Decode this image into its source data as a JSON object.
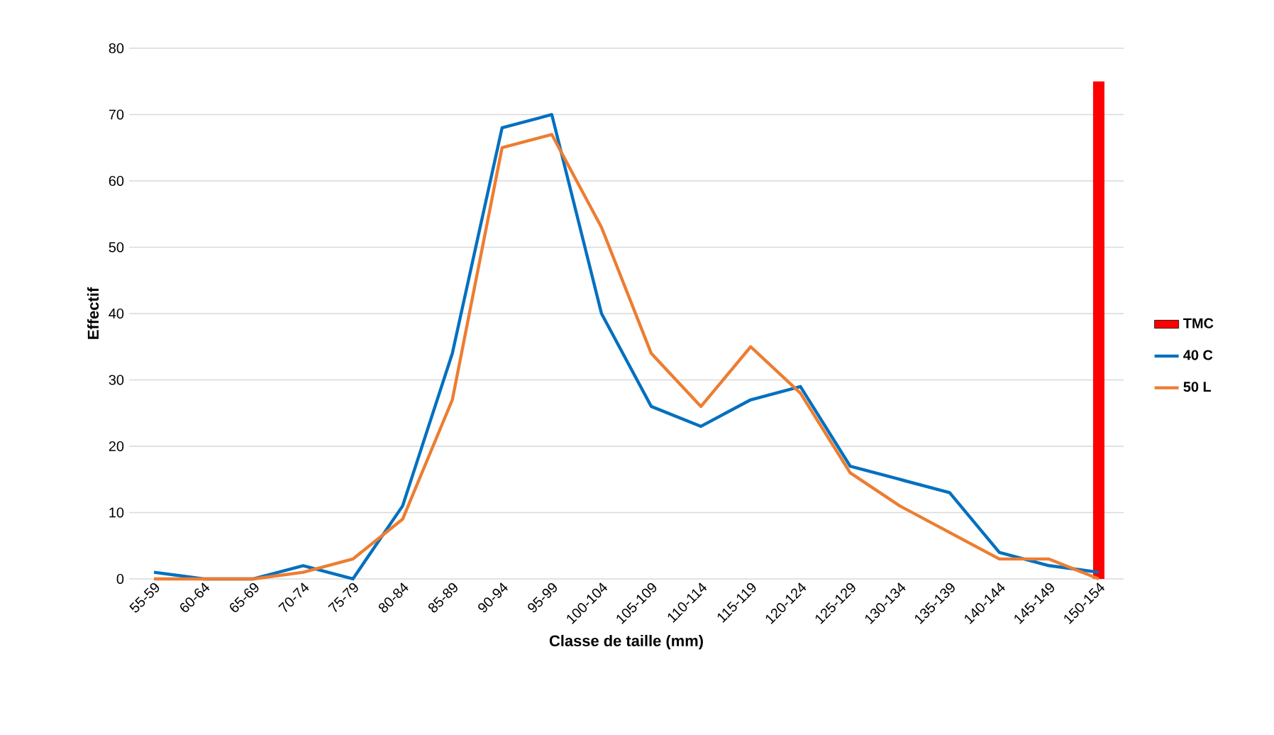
{
  "chart_data": {
    "type": "line",
    "xlabel": "Classe de taille (mm)",
    "ylabel": "Effectif",
    "categories": [
      "55-59",
      "60-64",
      "65-69",
      "70-74",
      "75-79",
      "80-84",
      "85-89",
      "90-94",
      "95-99",
      "100-104",
      "105-109",
      "110-114",
      "115-119",
      "120-124",
      "125-129",
      "130-134",
      "135-139",
      "140-144",
      "145-149",
      "150-154"
    ],
    "series": [
      {
        "name": "TMC",
        "type": "bar",
        "color": "#ff0000",
        "values": [
          null,
          null,
          null,
          null,
          null,
          null,
          null,
          null,
          null,
          null,
          null,
          null,
          null,
          null,
          null,
          null,
          null,
          null,
          null,
          75
        ]
      },
      {
        "name": "40 C",
        "color": "#0070c0",
        "values": [
          1,
          0,
          0,
          2,
          0,
          11,
          34,
          68,
          70,
          40,
          26,
          23,
          27,
          29,
          17,
          15,
          13,
          4,
          2,
          1
        ]
      },
      {
        "name": "50 L",
        "color": "#ed7d31",
        "values": [
          0,
          0,
          0,
          1,
          3,
          9,
          27,
          65,
          67,
          53,
          34,
          26,
          35,
          28,
          16,
          11,
          7,
          3,
          3,
          0
        ]
      }
    ],
    "ylim": [
      0,
      80
    ],
    "yticks": [
      0,
      10,
      20,
      30,
      40,
      50,
      60,
      70,
      80
    ],
    "grid": "y",
    "legend": "right"
  }
}
